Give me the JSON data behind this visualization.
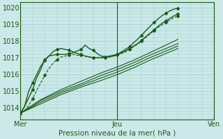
{
  "xlabel": "Pression niveau de la mer( hPa )",
  "ylim": [
    1013.3,
    1020.3
  ],
  "yticks": [
    1014,
    1015,
    1016,
    1017,
    1018,
    1019,
    1020
  ],
  "xtick_labels": [
    "Mer",
    "Jeu",
    "Ven"
  ],
  "xtick_positions": [
    0,
    48,
    96
  ],
  "x_total": 96,
  "bg_color": "#cce8e8",
  "grid_color": "#99cccc",
  "line_color": "#1a5c1a",
  "series": [
    {
      "name": "s0_upper",
      "points": [
        [
          0,
          1013.7
        ],
        [
          2,
          1014.1
        ],
        [
          4,
          1014.6
        ],
        [
          6,
          1015.1
        ],
        [
          8,
          1015.8
        ],
        [
          10,
          1016.3
        ],
        [
          12,
          1016.9
        ],
        [
          14,
          1017.1
        ],
        [
          16,
          1017.15
        ],
        [
          18,
          1017.2
        ],
        [
          20,
          1017.2
        ],
        [
          22,
          1017.2
        ],
        [
          24,
          1017.25
        ],
        [
          26,
          1017.3
        ],
        [
          28,
          1017.4
        ],
        [
          30,
          1017.5
        ],
        [
          32,
          1017.75
        ],
        [
          34,
          1017.55
        ],
        [
          36,
          1017.45
        ],
        [
          38,
          1017.25
        ],
        [
          40,
          1017.1
        ],
        [
          42,
          1017.05
        ],
        [
          44,
          1017.05
        ],
        [
          46,
          1017.1
        ],
        [
          48,
          1017.2
        ],
        [
          50,
          1017.35
        ],
        [
          52,
          1017.5
        ],
        [
          54,
          1017.65
        ],
        [
          56,
          1017.9
        ],
        [
          58,
          1018.1
        ],
        [
          60,
          1018.35
        ],
        [
          62,
          1018.6
        ],
        [
          64,
          1018.85
        ],
        [
          66,
          1019.1
        ],
        [
          68,
          1019.3
        ],
        [
          70,
          1019.5
        ],
        [
          72,
          1019.65
        ],
        [
          74,
          1019.8
        ],
        [
          76,
          1019.9
        ],
        [
          78,
          1019.95
        ]
      ],
      "marker": true,
      "lw": 1.0,
      "ls": "-"
    },
    {
      "name": "s1_early_peak",
      "points": [
        [
          0,
          1013.7
        ],
        [
          2,
          1014.1
        ],
        [
          4,
          1015.0
        ],
        [
          6,
          1015.5
        ],
        [
          8,
          1016.0
        ],
        [
          10,
          1016.5
        ],
        [
          12,
          1016.85
        ],
        [
          14,
          1017.1
        ],
        [
          16,
          1017.35
        ],
        [
          18,
          1017.5
        ],
        [
          20,
          1017.55
        ],
        [
          22,
          1017.5
        ],
        [
          24,
          1017.45
        ],
        [
          26,
          1017.35
        ],
        [
          28,
          1017.25
        ],
        [
          30,
          1017.2
        ],
        [
          32,
          1017.1
        ],
        [
          34,
          1017.05
        ],
        [
          36,
          1017.0
        ],
        [
          38,
          1017.0
        ],
        [
          40,
          1017.0
        ],
        [
          42,
          1017.05
        ],
        [
          44,
          1017.1
        ],
        [
          46,
          1017.15
        ],
        [
          48,
          1017.2
        ],
        [
          50,
          1017.3
        ],
        [
          52,
          1017.4
        ],
        [
          54,
          1017.55
        ],
        [
          56,
          1017.7
        ],
        [
          58,
          1017.85
        ],
        [
          60,
          1018.05
        ],
        [
          62,
          1018.25
        ],
        [
          64,
          1018.45
        ],
        [
          66,
          1018.65
        ],
        [
          68,
          1018.85
        ],
        [
          70,
          1019.05
        ],
        [
          72,
          1019.2
        ],
        [
          74,
          1019.35
        ],
        [
          76,
          1019.5
        ],
        [
          78,
          1019.6
        ]
      ],
      "marker": true,
      "lw": 1.0,
      "ls": "-"
    },
    {
      "name": "s2_linear1",
      "points": [
        [
          0,
          1013.7
        ],
        [
          10,
          1014.5
        ],
        [
          20,
          1015.1
        ],
        [
          30,
          1015.6
        ],
        [
          40,
          1016.1
        ],
        [
          48,
          1016.45
        ],
        [
          56,
          1016.85
        ],
        [
          64,
          1017.3
        ],
        [
          72,
          1017.75
        ],
        [
          78,
          1018.1
        ]
      ],
      "marker": false,
      "lw": 0.8,
      "ls": "-"
    },
    {
      "name": "s3_linear2",
      "points": [
        [
          0,
          1013.7
        ],
        [
          10,
          1014.45
        ],
        [
          20,
          1015.0
        ],
        [
          30,
          1015.45
        ],
        [
          40,
          1015.95
        ],
        [
          48,
          1016.3
        ],
        [
          56,
          1016.7
        ],
        [
          64,
          1017.15
        ],
        [
          72,
          1017.55
        ],
        [
          78,
          1017.85
        ]
      ],
      "marker": false,
      "lw": 0.8,
      "ls": "-"
    },
    {
      "name": "s4_linear3",
      "points": [
        [
          0,
          1013.7
        ],
        [
          10,
          1014.35
        ],
        [
          20,
          1014.9
        ],
        [
          30,
          1015.35
        ],
        [
          40,
          1015.8
        ],
        [
          48,
          1016.15
        ],
        [
          56,
          1016.55
        ],
        [
          64,
          1017.0
        ],
        [
          72,
          1017.4
        ],
        [
          78,
          1017.7
        ]
      ],
      "marker": false,
      "lw": 0.8,
      "ls": "-"
    },
    {
      "name": "s5_linear4",
      "points": [
        [
          0,
          1013.7
        ],
        [
          10,
          1014.25
        ],
        [
          20,
          1014.8
        ],
        [
          30,
          1015.25
        ],
        [
          40,
          1015.65
        ],
        [
          48,
          1016.0
        ],
        [
          56,
          1016.4
        ],
        [
          64,
          1016.85
        ],
        [
          72,
          1017.25
        ],
        [
          78,
          1017.55
        ]
      ],
      "marker": false,
      "lw": 0.8,
      "ls": "-"
    },
    {
      "name": "s6_dashed_early",
      "points": [
        [
          0,
          1013.7
        ],
        [
          2,
          1013.85
        ],
        [
          4,
          1014.15
        ],
        [
          6,
          1014.55
        ],
        [
          8,
          1015.05
        ],
        [
          10,
          1015.5
        ],
        [
          12,
          1015.95
        ],
        [
          14,
          1016.35
        ],
        [
          16,
          1016.65
        ],
        [
          18,
          1016.9
        ],
        [
          20,
          1017.05
        ],
        [
          22,
          1017.1
        ],
        [
          24,
          1017.15
        ],
        [
          26,
          1017.2
        ],
        [
          28,
          1017.15
        ],
        [
          30,
          1017.15
        ],
        [
          32,
          1017.1
        ],
        [
          34,
          1017.05
        ],
        [
          36,
          1017.0
        ],
        [
          38,
          1017.0
        ],
        [
          40,
          1017.0
        ],
        [
          42,
          1017.0
        ],
        [
          44,
          1017.05
        ],
        [
          46,
          1017.1
        ],
        [
          48,
          1017.15
        ],
        [
          50,
          1017.25
        ],
        [
          52,
          1017.35
        ],
        [
          54,
          1017.5
        ],
        [
          56,
          1017.65
        ],
        [
          58,
          1017.8
        ],
        [
          60,
          1018.0
        ],
        [
          62,
          1018.2
        ],
        [
          64,
          1018.4
        ],
        [
          66,
          1018.6
        ],
        [
          68,
          1018.8
        ],
        [
          70,
          1018.95
        ],
        [
          72,
          1019.1
        ],
        [
          74,
          1019.25
        ],
        [
          76,
          1019.4
        ],
        [
          78,
          1019.5
        ]
      ],
      "marker": true,
      "lw": 0.8,
      "ls": "--"
    }
  ],
  "marker_style": "D",
  "marker_size": 2.0,
  "markevery": 3
}
